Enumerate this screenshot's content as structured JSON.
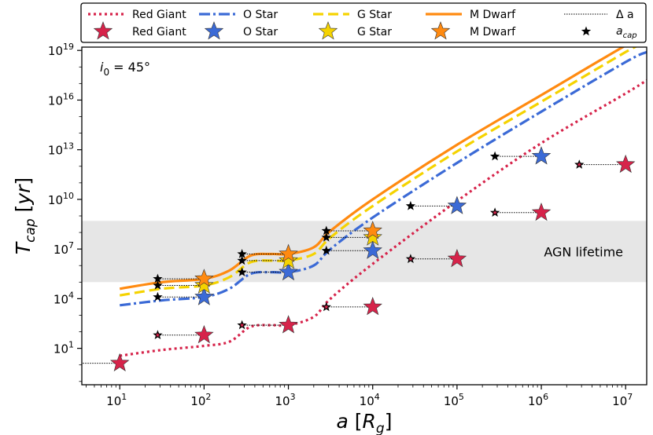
{
  "chart_data": {
    "type": "line",
    "xscale": "log",
    "yscale": "log",
    "xlim_log10": [
      0.55,
      7.25
    ],
    "ylim_log10": [
      -1.2,
      19.2
    ],
    "xlabel_main": "a",
    "xlabel_sub": "g",
    "xlabel_unit": "R",
    "ylabel_main": "T",
    "ylabel_sub": "cap",
    "ylabel_unit": "yr",
    "x_ticks": [
      {
        "exp": 1,
        "base": "10",
        "sup": "1"
      },
      {
        "exp": 2,
        "base": "10",
        "sup": "2"
      },
      {
        "exp": 3,
        "base": "10",
        "sup": "3"
      },
      {
        "exp": 4,
        "base": "10",
        "sup": "4"
      },
      {
        "exp": 5,
        "base": "10",
        "sup": "5"
      },
      {
        "exp": 6,
        "base": "10",
        "sup": "6"
      },
      {
        "exp": 7,
        "base": "10",
        "sup": "7"
      }
    ],
    "y_ticks": [
      {
        "exp": 1,
        "base": "10",
        "sup": "1"
      },
      {
        "exp": 4,
        "base": "10",
        "sup": "4"
      },
      {
        "exp": 7,
        "base": "10",
        "sup": "7"
      },
      {
        "exp": 10,
        "base": "10",
        "sup": "10"
      },
      {
        "exp": 13,
        "base": "10",
        "sup": "13"
      },
      {
        "exp": 16,
        "base": "10",
        "sup": "16"
      },
      {
        "exp": 19,
        "base": "10",
        "sup": "19"
      }
    ],
    "inclination_label": {
      "sym": "i",
      "sub": "0",
      "rest": " = 45°"
    },
    "agn_band": {
      "label": "AGN lifetime",
      "y_range_log10": [
        5.0,
        8.7
      ]
    },
    "series": [
      {
        "name": "Red Giant",
        "color": "#d6234a",
        "dash": "3,4",
        "curve_log": [
          [
            1.0,
            0.55
          ],
          [
            1.5,
            0.9
          ],
          [
            2.0,
            1.15
          ],
          [
            2.3,
            1.4
          ],
          [
            2.55,
            2.3
          ],
          [
            2.8,
            2.4
          ],
          [
            3.0,
            2.4
          ],
          [
            3.3,
            2.9
          ],
          [
            3.5,
            4.0
          ],
          [
            4.0,
            6.1
          ],
          [
            5.0,
            9.9
          ],
          [
            6.0,
            13.4
          ],
          [
            7.0,
            16.4
          ],
          [
            7.25,
            17.2
          ]
        ],
        "stars_log": [
          [
            1.0,
            0.1
          ],
          [
            2.0,
            1.8
          ],
          [
            3.0,
            2.4
          ],
          [
            4.0,
            3.5
          ],
          [
            5.0,
            6.4
          ],
          [
            6.0,
            9.2
          ],
          [
            7.0,
            12.1
          ]
        ]
      },
      {
        "name": "O Star",
        "color": "#3b6ad6",
        "dash": "14,4,3,4",
        "curve_log": [
          [
            1.0,
            3.6
          ],
          [
            1.5,
            3.9
          ],
          [
            2.0,
            4.1
          ],
          [
            2.3,
            4.6
          ],
          [
            2.55,
            5.5
          ],
          [
            2.8,
            5.6
          ],
          [
            3.0,
            5.6
          ],
          [
            3.3,
            6.0
          ],
          [
            3.5,
            7.0
          ],
          [
            4.0,
            8.9
          ],
          [
            5.0,
            12.2
          ],
          [
            6.0,
            15.3
          ],
          [
            7.0,
            18.3
          ],
          [
            7.25,
            18.9
          ]
        ],
        "stars_log": [
          [
            2.0,
            4.1
          ],
          [
            3.0,
            5.6
          ],
          [
            4.0,
            6.9
          ],
          [
            5.0,
            9.6
          ],
          [
            6.0,
            12.6
          ]
        ]
      },
      {
        "name": "G Star",
        "color": "#f5d300",
        "dash": "13,6",
        "curve_log": [
          [
            1.0,
            4.2
          ],
          [
            1.5,
            4.6
          ],
          [
            2.0,
            4.8
          ],
          [
            2.3,
            5.3
          ],
          [
            2.55,
            6.2
          ],
          [
            2.8,
            6.3
          ],
          [
            3.0,
            6.3
          ],
          [
            3.3,
            6.7
          ],
          [
            3.5,
            7.7
          ],
          [
            4.0,
            9.6
          ],
          [
            5.0,
            12.9
          ],
          [
            6.0,
            15.9
          ],
          [
            7.0,
            18.9
          ],
          [
            7.25,
            19.5
          ]
        ],
        "stars_log": [
          [
            2.0,
            4.8
          ],
          [
            3.0,
            6.3
          ],
          [
            4.0,
            7.7
          ]
        ]
      },
      {
        "name": "M Dwarf",
        "color": "#ff8a10",
        "dash": "",
        "curve_log": [
          [
            1.0,
            4.6
          ],
          [
            1.5,
            5.0
          ],
          [
            2.0,
            5.2
          ],
          [
            2.3,
            5.7
          ],
          [
            2.55,
            6.6
          ],
          [
            2.8,
            6.7
          ],
          [
            3.0,
            6.7
          ],
          [
            3.3,
            7.1
          ],
          [
            3.5,
            8.1
          ],
          [
            4.0,
            10.0
          ],
          [
            5.0,
            13.3
          ],
          [
            6.0,
            16.3
          ],
          [
            7.0,
            19.3
          ],
          [
            7.25,
            19.9
          ]
        ],
        "stars_log": [
          [
            2.0,
            5.2
          ],
          [
            3.0,
            6.7
          ],
          [
            4.0,
            8.1
          ]
        ]
      }
    ],
    "delta_a_log": 0.55,
    "legend": {
      "position": "top (above plot)",
      "col_labels": [
        "Red Giant",
        "O Star",
        "G Star",
        "M Dwarf"
      ],
      "extra_line_label": "Δ a",
      "extra_star_sym": "a",
      "extra_star_sub": "cap"
    }
  }
}
